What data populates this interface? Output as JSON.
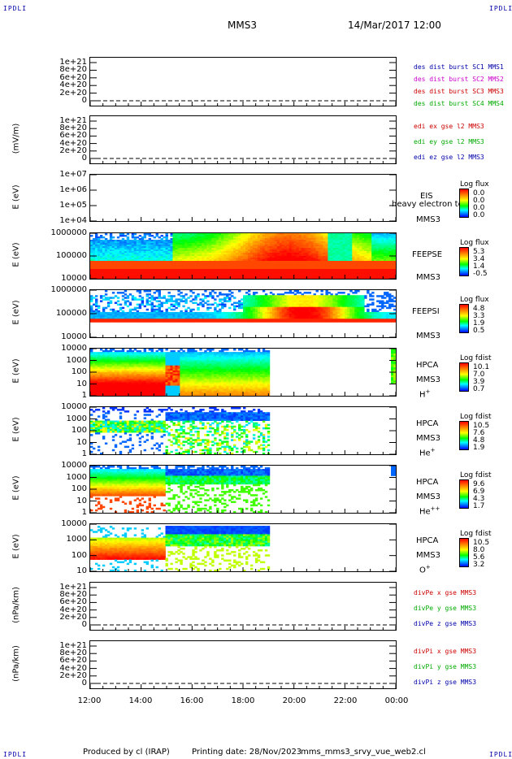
{
  "corner_label": "IPDLI",
  "spacecraft": "MMS3",
  "date": "14/Mar/2017 12:00",
  "footer": {
    "producer": "Produced by cl (IRAP)",
    "printing": "Printing date: 28/Nov/2023",
    "file": "mms_mms3_srvy_vue_web2.cl"
  },
  "x_axis": {
    "ticks": [
      "12:00",
      "14:00",
      "16:00",
      "18:00",
      "20:00",
      "22:00",
      "00:00"
    ]
  },
  "chart_data": [
    {
      "type": "line",
      "ylabel": "",
      "ylim": [
        0,
        1e+21
      ],
      "yticks": [
        "1e+21",
        "8e+20",
        "6e+20",
        "4e+20",
        "2e+20",
        "0"
      ],
      "series": [
        {
          "name": "des dist burst SC1 MMS1",
          "color": "#0000aa",
          "values": []
        },
        {
          "name": "des dist burst SC2 MMS2",
          "color": "#cc00cc",
          "values": []
        },
        {
          "name": "des dist burst SC3 MMS3",
          "color": "#cc0000",
          "values": []
        },
        {
          "name": "des dist burst SC4 MMS4",
          "color": "#00aa00",
          "values": []
        }
      ]
    },
    {
      "type": "line",
      "ylabel": "(mV/m)",
      "ylim": [
        0,
        1e+21
      ],
      "yticks": [
        "1e+21",
        "8e+20",
        "6e+20",
        "4e+20",
        "2e+20",
        "0"
      ],
      "series": [
        {
          "name": "edi ex gse l2 MMS3",
          "color": "#cc0000",
          "values": []
        },
        {
          "name": "edi ey gse l2 MMS3",
          "color": "#00aa00",
          "values": []
        },
        {
          "name": "edi ez gse l2 MMS3",
          "color": "#0000aa",
          "values": []
        }
      ]
    },
    {
      "type": "heatmap",
      "ylabel": "E (eV)",
      "yticks": [
        "1e+07",
        "1e+06",
        "1e+05",
        "1e+04"
      ],
      "instrument": "EIS",
      "spacecraft": "MMS3",
      "overlay_text": "heavy electron to",
      "colorbar": {
        "title": "Log flux",
        "values": [
          "0.0",
          "0.0",
          "0.0",
          "0.0"
        ]
      }
    },
    {
      "type": "heatmap",
      "ylabel": "E (eV)",
      "yticks": [
        "1000000",
        "100000",
        "10000"
      ],
      "instrument": "FEEPSE",
      "spacecraft": "MMS3",
      "colorbar": {
        "title": "Log flux",
        "values": [
          "5.3",
          "3.4",
          "1.4",
          "-0.5"
        ]
      }
    },
    {
      "type": "heatmap",
      "ylabel": "E (eV)",
      "yticks": [
        "1000000",
        "100000",
        "10000"
      ],
      "instrument": "FEEPSI",
      "spacecraft": "MMS3",
      "colorbar": {
        "title": "Log flux",
        "values": [
          "4.8",
          "3.3",
          "1.9",
          "0.5"
        ]
      }
    },
    {
      "type": "heatmap",
      "ylabel": "E (eV)",
      "yticks": [
        "10000",
        "1000",
        "100",
        "10",
        "1"
      ],
      "instrument": "HPCA",
      "spacecraft": "MMS3",
      "species": "H",
      "species_charge": "+",
      "colorbar": {
        "title": "Log fdist",
        "values": [
          "10.1",
          "7.0",
          "3.9",
          "0.7"
        ]
      }
    },
    {
      "type": "heatmap",
      "ylabel": "E (eV)",
      "yticks": [
        "10000",
        "1000",
        "100",
        "10",
        "1"
      ],
      "instrument": "HPCA",
      "spacecraft": "MMS3",
      "species": "He",
      "species_charge": "+",
      "colorbar": {
        "title": "Log fdist",
        "values": [
          "10.5",
          "7.6",
          "4.8",
          "1.9"
        ]
      }
    },
    {
      "type": "heatmap",
      "ylabel": "E (eV)",
      "yticks": [
        "10000",
        "1000",
        "100",
        "10",
        "1"
      ],
      "instrument": "HPCA",
      "spacecraft": "MMS3",
      "species": "He",
      "species_charge": "++",
      "colorbar": {
        "title": "Log fdist",
        "values": [
          "9.6",
          "6.9",
          "4.3",
          "1.7"
        ]
      }
    },
    {
      "type": "heatmap",
      "ylabel": "E (eV)",
      "yticks": [
        "10000",
        "1000",
        "100",
        "10"
      ],
      "instrument": "HPCA",
      "spacecraft": "MMS3",
      "species": "O",
      "species_charge": "+",
      "colorbar": {
        "title": "Log fdist",
        "values": [
          "10.5",
          "8.0",
          "5.6",
          "3.2"
        ]
      }
    },
    {
      "type": "line",
      "ylabel": "(nPa/km)",
      "ylim": [
        0,
        1e+21
      ],
      "yticks": [
        "1e+21",
        "8e+20",
        "6e+20",
        "4e+20",
        "2e+20",
        "0"
      ],
      "series": [
        {
          "name": "divPe x gse MMS3",
          "color": "#cc0000",
          "values": []
        },
        {
          "name": "divPe y gse MMS3",
          "color": "#00aa00",
          "values": []
        },
        {
          "name": "divPe z gse MMS3",
          "color": "#0000aa",
          "values": []
        }
      ]
    },
    {
      "type": "line",
      "ylabel": "(nPa/km)",
      "ylim": [
        0,
        1e+21
      ],
      "yticks": [
        "1e+21",
        "8e+20",
        "6e+20",
        "4e+20",
        "2e+20",
        "0"
      ],
      "series": [
        {
          "name": "divPi x gse MMS3",
          "color": "#cc0000",
          "values": []
        },
        {
          "name": "divPi y gse MMS3",
          "color": "#00aa00",
          "values": []
        },
        {
          "name": "divPi z gse MMS3",
          "color": "#0000aa",
          "values": []
        }
      ]
    }
  ]
}
